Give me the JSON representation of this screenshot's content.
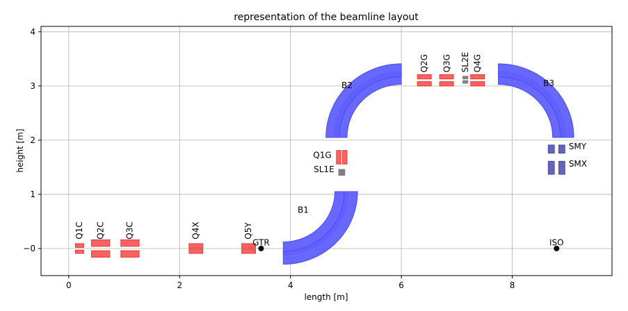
{
  "chart_data": {
    "type": "scatter",
    "title": "representation of the beamline layout",
    "xlabel": "length [m]",
    "ylabel": "height [m]",
    "xlim": [
      -0.5,
      9.8
    ],
    "ylim": [
      -0.5,
      4.1
    ],
    "xticks": [
      0,
      2,
      4,
      6,
      8
    ],
    "yticks": [
      0,
      1,
      2,
      3,
      4
    ],
    "ytick_labels": [
      "−0",
      "1",
      "2",
      "3",
      "4"
    ],
    "grid": true,
    "colors": {
      "quadrupole": "#ff6060",
      "quadrupole_edge": "#e03c3c",
      "dipole": "#6060ff",
      "dipole_edge": "#4a4aff",
      "slit": "#808080",
      "steering": "#6464b8",
      "point": "#000000"
    },
    "quadrupoles": [
      {
        "label": "Q1C",
        "rects": [
          [
            0.12,
            0.02,
            0.15,
            0.07
          ],
          [
            0.12,
            -0.09,
            0.15,
            0.06
          ]
        ]
      },
      {
        "label": "Q2C",
        "rects": [
          [
            0.41,
            0.04,
            0.33,
            0.12
          ],
          [
            0.41,
            -0.16,
            0.33,
            0.12
          ]
        ]
      },
      {
        "label": "Q3C",
        "rects": [
          [
            0.94,
            0.04,
            0.33,
            0.12
          ],
          [
            0.94,
            -0.16,
            0.33,
            0.12
          ]
        ]
      },
      {
        "label": "Q4X",
        "rects": [
          [
            2.17,
            0.01,
            0.25,
            0.08
          ],
          [
            2.17,
            -0.09,
            0.25,
            0.08
          ]
        ]
      },
      {
        "label": "Q5Y",
        "rects": [
          [
            3.12,
            0.01,
            0.25,
            0.08
          ],
          [
            3.12,
            -0.09,
            0.25,
            0.08
          ]
        ]
      },
      {
        "label": "Q1G",
        "rects": [
          [
            4.83,
            1.56,
            0.08,
            0.25
          ],
          [
            4.94,
            1.56,
            0.08,
            0.25
          ]
        ]
      },
      {
        "label": "Q2G",
        "rects": [
          [
            6.29,
            3.13,
            0.25,
            0.08
          ],
          [
            6.29,
            3.0,
            0.25,
            0.08
          ]
        ]
      },
      {
        "label": "Q3G",
        "rects": [
          [
            6.69,
            3.13,
            0.25,
            0.08
          ],
          [
            6.69,
            3.0,
            0.25,
            0.08
          ]
        ]
      },
      {
        "label": "Q4G",
        "rects": [
          [
            7.25,
            3.13,
            0.25,
            0.08
          ],
          [
            7.25,
            3.0,
            0.25,
            0.08
          ]
        ]
      }
    ],
    "dipoles": [
      {
        "label": "B1",
        "center": [
          3.87,
          1.05
        ],
        "r_inner": [
          0.93,
          1.17
        ],
        "r_outer": [
          1.1,
          1.34
        ],
        "angles": [
          270,
          360
        ]
      },
      {
        "label": "B2",
        "center": [
          6.0,
          2.05
        ],
        "r_inner": [
          0.98,
          1.22
        ],
        "r_outer": [
          1.12,
          1.36
        ],
        "angles": [
          90,
          180
        ]
      },
      {
        "label": "B3",
        "center": [
          7.75,
          2.05
        ],
        "r_inner": [
          0.98,
          1.22
        ],
        "r_outer": [
          1.12,
          1.36
        ],
        "angles": [
          0,
          90
        ]
      }
    ],
    "slits": [
      {
        "label": "SL1E",
        "rects": [
          [
            4.87,
            1.35,
            0.11,
            0.11
          ]
        ]
      },
      {
        "label": "SL2E",
        "rects": [
          [
            7.11,
            3.13,
            0.09,
            0.05
          ],
          [
            7.11,
            3.05,
            0.09,
            0.05
          ]
        ]
      }
    ],
    "steerers": [
      {
        "label": "SMY",
        "rects": [
          [
            8.65,
            1.76,
            0.11,
            0.15
          ],
          [
            8.84,
            1.76,
            0.11,
            0.15
          ]
        ]
      },
      {
        "label": "SMX",
        "rects": [
          [
            8.65,
            1.37,
            0.11,
            0.24
          ],
          [
            8.84,
            1.37,
            0.11,
            0.24
          ]
        ]
      }
    ],
    "points": [
      {
        "label": "GTR",
        "x": 3.47,
        "y": 0.0
      },
      {
        "label": "ISO",
        "x": 8.8,
        "y": 0.0
      }
    ],
    "labels": [
      {
        "text": "Q1C",
        "x": 0.19,
        "y": 0.17,
        "rotate": true
      },
      {
        "text": "Q2C",
        "x": 0.57,
        "y": 0.17,
        "rotate": true
      },
      {
        "text": "Q3C",
        "x": 1.1,
        "y": 0.17,
        "rotate": true
      },
      {
        "text": "Q4X",
        "x": 2.29,
        "y": 0.17,
        "rotate": true
      },
      {
        "text": "Q5Y",
        "x": 3.24,
        "y": 0.17,
        "rotate": true
      },
      {
        "text": "Q2G",
        "x": 6.41,
        "y": 3.25,
        "rotate": true
      },
      {
        "text": "Q3G",
        "x": 6.82,
        "y": 3.25,
        "rotate": true
      },
      {
        "text": "SL2E",
        "x": 7.15,
        "y": 3.25,
        "rotate": true
      },
      {
        "text": "Q4G",
        "x": 7.37,
        "y": 3.25,
        "rotate": true
      },
      {
        "text": "B1",
        "x": 4.13,
        "y": 0.66,
        "rotate": false,
        "anchor": "start"
      },
      {
        "text": "B2",
        "x": 4.92,
        "y": 2.96,
        "rotate": false,
        "anchor": "start"
      },
      {
        "text": "B3",
        "x": 8.56,
        "y": 3.0,
        "rotate": false,
        "anchor": "start"
      },
      {
        "text": "Q1G",
        "x": 4.74,
        "y": 1.67,
        "rotate": false,
        "anchor": "end"
      },
      {
        "text": "SL1E",
        "x": 4.79,
        "y": 1.41,
        "rotate": false,
        "anchor": "end"
      },
      {
        "text": "SMY",
        "x": 9.02,
        "y": 1.83,
        "rotate": false,
        "anchor": "start"
      },
      {
        "text": "SMX",
        "x": 9.02,
        "y": 1.51,
        "rotate": false,
        "anchor": "start"
      },
      {
        "text": "GTR",
        "x": 3.47,
        "y": 0.06,
        "rotate": false,
        "anchor": "middle"
      },
      {
        "text": "ISO",
        "x": 8.8,
        "y": 0.06,
        "rotate": false,
        "anchor": "middle"
      }
    ]
  }
}
